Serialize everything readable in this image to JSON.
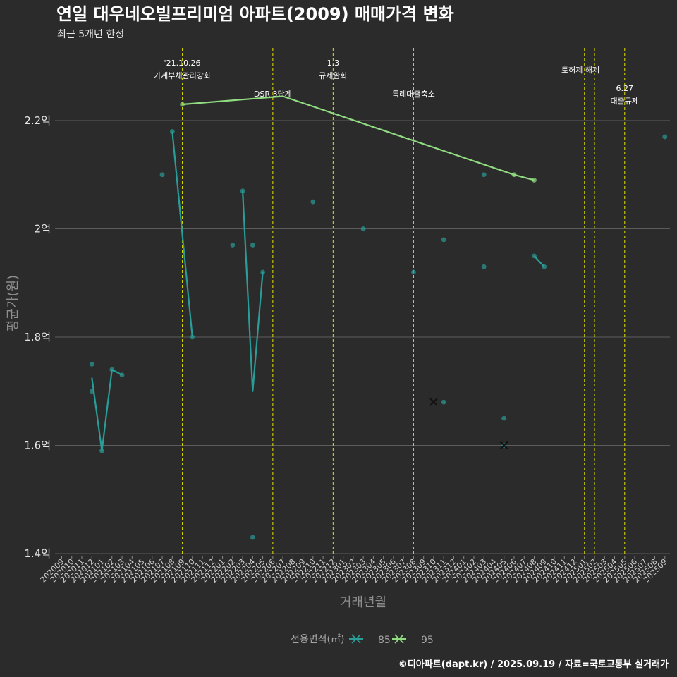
{
  "chart_data": {
    "type": "line",
    "title": "연일 대우네오빌프리미엄 아파트(2009) 매매가격 변화",
    "subtitle": "최근 5개년 한정",
    "xlabel": "거래년월",
    "ylabel": "평균가(원)",
    "caption": "©디아파트(dapt.kr) / 2025.09.19 / 자료=국토교통부 실거래가",
    "legend_title": "전용면적(㎡)",
    "legend_position": "bottom",
    "grid": true,
    "ylim": [
      1.4,
      2.2
    ],
    "y_ticks": [
      {
        "value": 1.4,
        "label": "1.4억"
      },
      {
        "value": 1.6,
        "label": "1.6억"
      },
      {
        "value": 1.8,
        "label": "1.8억"
      },
      {
        "value": 2.0,
        "label": "2억"
      },
      {
        "value": 2.2,
        "label": "2.2억"
      }
    ],
    "x_categories": [
      "202009",
      "202010",
      "202011",
      "202012",
      "202101",
      "202102",
      "202103",
      "202104",
      "202105",
      "202106",
      "202107",
      "202108",
      "202109",
      "202110",
      "202111",
      "202112",
      "202201",
      "202202",
      "202203",
      "202204",
      "202205",
      "202206",
      "202207",
      "202208",
      "202209",
      "202210",
      "202211",
      "202212",
      "202301",
      "202302",
      "202303",
      "202304",
      "202305",
      "202306",
      "202307",
      "202308",
      "202309",
      "202310",
      "202311",
      "202312",
      "202401",
      "202402",
      "202403",
      "202404",
      "202405",
      "202406",
      "202407",
      "202408",
      "202409",
      "202410",
      "202411",
      "202412",
      "202501",
      "202502",
      "202503",
      "202504",
      "202505",
      "202506",
      "202507",
      "202508",
      "202509"
    ],
    "events": [
      {
        "x": 13.0,
        "lines": [
          "'21.10.26",
          "가계부채관리강화"
        ],
        "row": 0
      },
      {
        "x": 22.0,
        "lines": [
          "DSR 3단계"
        ],
        "row": 2
      },
      {
        "x": 28.0,
        "lines": [
          "1.3",
          "규제완화"
        ],
        "row": 0
      },
      {
        "x": 36.0,
        "lines": [
          "특례대출축소"
        ],
        "row": 2
      },
      {
        "x": 53.0,
        "lines": [],
        "row": 1
      },
      {
        "x": 54.0,
        "lines": [
          "토허제 해제"
        ],
        "row": 1
      },
      {
        "x": 57.0,
        "lines": [
          "6.27",
          "대출규제"
        ],
        "row": 3
      }
    ],
    "series": [
      {
        "name": "85",
        "color": "#2a9d98",
        "line": [
          {
            "x": 4.0,
            "y": 1.725
          },
          {
            "x": 5.0,
            "y": 1.59
          },
          {
            "x": 6.0,
            "y": 1.74
          },
          {
            "x": 7.0,
            "y": 1.73
          },
          {
            "x": null,
            "y": null
          },
          {
            "x": 12.0,
            "y": 2.18
          },
          {
            "x": 14.0,
            "y": 1.8
          },
          {
            "x": null,
            "y": null
          },
          {
            "x": 19.0,
            "y": 2.07
          },
          {
            "x": 20.0,
            "y": 1.7
          },
          {
            "x": 21.0,
            "y": 1.92
          },
          {
            "x": null,
            "y": null
          },
          {
            "x": 48.0,
            "y": 1.95
          },
          {
            "x": 49.0,
            "y": 1.93
          }
        ],
        "points": [
          {
            "x": 4.0,
            "y": 1.75
          },
          {
            "x": 4.0,
            "y": 1.7
          },
          {
            "x": 5.0,
            "y": 1.59
          },
          {
            "x": 6.0,
            "y": 1.74
          },
          {
            "x": 7.0,
            "y": 1.73
          },
          {
            "x": 11.0,
            "y": 2.1
          },
          {
            "x": 12.0,
            "y": 2.18
          },
          {
            "x": 14.0,
            "y": 1.8
          },
          {
            "x": 18.0,
            "y": 1.97
          },
          {
            "x": 19.0,
            "y": 2.07
          },
          {
            "x": 20.0,
            "y": 1.97
          },
          {
            "x": 20.0,
            "y": 1.43
          },
          {
            "x": 21.0,
            "y": 1.92
          },
          {
            "x": 26.0,
            "y": 2.05
          },
          {
            "x": 31.0,
            "y": 2.0
          },
          {
            "x": 36.0,
            "y": 1.92
          },
          {
            "x": 39.0,
            "y": 1.68
          },
          {
            "x": 39.0,
            "y": 1.98
          },
          {
            "x": 43.0,
            "y": 2.1
          },
          {
            "x": 43.0,
            "y": 1.93
          },
          {
            "x": 45.0,
            "y": 1.65
          },
          {
            "x": 45.0,
            "y": 1.6
          },
          {
            "x": 48.0,
            "y": 1.95
          },
          {
            "x": 49.0,
            "y": 1.93
          },
          {
            "x": 61.0,
            "y": 2.17
          }
        ],
        "cancelled": [
          {
            "x": 38.0,
            "y": 1.68
          },
          {
            "x": 45.0,
            "y": 1.6
          }
        ]
      },
      {
        "name": "95",
        "color": "#90dc80",
        "line": [
          {
            "x": 13.0,
            "y": 2.23
          },
          {
            "x": 23.0,
            "y": 2.245
          },
          {
            "x": 46.0,
            "y": 2.1
          },
          {
            "x": 48.0,
            "y": 2.09
          }
        ],
        "points": [
          {
            "x": 13.0,
            "y": 2.23
          },
          {
            "x": 46.0,
            "y": 2.1
          },
          {
            "x": 48.0,
            "y": 2.09
          }
        ],
        "cancelled": []
      }
    ]
  }
}
